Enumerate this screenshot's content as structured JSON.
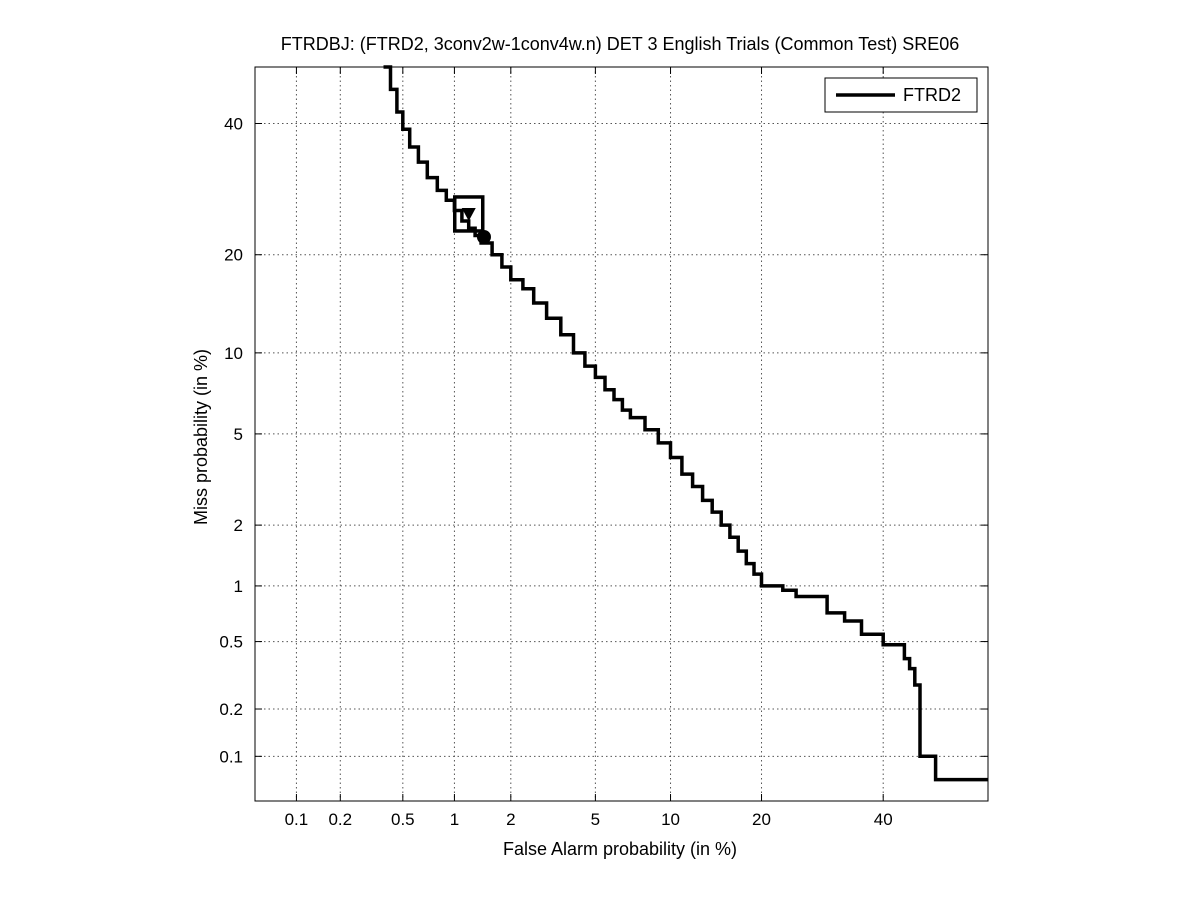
{
  "chart_data": {
    "type": "line",
    "title": "FTRDBJ: (FTRD2, 3conv2w-1conv4w.n) DET 3 English Trials (Common Test) SRE06",
    "xlabel": "False Alarm probability (in %)",
    "ylabel": "Miss probability (in %)",
    "x_scale": "normal-deviate (probit)",
    "y_scale": "normal-deviate (probit)",
    "xlim": [
      0.05,
      60
    ],
    "ylim": [
      0.05,
      50
    ],
    "x_ticks": [
      0.1,
      0.2,
      0.5,
      1,
      2,
      5,
      10,
      20,
      40
    ],
    "x_tick_labels": [
      "0.1",
      "0.2",
      "0.5",
      "1",
      "2",
      "5",
      "10",
      "20",
      "40"
    ],
    "y_ticks": [
      0.1,
      0.2,
      0.5,
      1,
      2,
      5,
      10,
      20,
      40
    ],
    "y_tick_labels": [
      "0.1",
      "0.2",
      "0.5",
      "1",
      "2",
      "5",
      "10",
      "20",
      "40"
    ],
    "grid": true,
    "legend_position": "top-right",
    "series": [
      {
        "name": "FTRD2",
        "color": "#000000",
        "x": [
          0.38,
          0.42,
          0.46,
          0.5,
          0.55,
          0.62,
          0.7,
          0.8,
          0.9,
          1.0,
          1.1,
          1.2,
          1.3,
          1.4,
          1.6,
          1.8,
          2.0,
          2.3,
          2.6,
          3.0,
          3.5,
          4.0,
          4.5,
          5.0,
          5.5,
          6.0,
          6.5,
          7.0,
          8.0,
          9.0,
          10.0,
          11.0,
          12.0,
          13.0,
          14.0,
          15.0,
          16.0,
          17.0,
          18.0,
          19.0,
          20.0,
          21.0,
          23.0,
          25.0,
          30.0,
          33.0,
          36.0,
          40.0,
          44.0,
          45.0,
          46.0,
          47.0,
          50.0,
          60.0
        ],
        "y": [
          50.0,
          46.0,
          42.0,
          39.0,
          36.0,
          33.5,
          31.0,
          29.0,
          27.5,
          26.0,
          24.5,
          23.5,
          22.5,
          21.5,
          20.0,
          18.5,
          17.0,
          16.0,
          14.5,
          13.0,
          11.5,
          10.0,
          9.0,
          8.2,
          7.4,
          6.8,
          6.2,
          5.8,
          5.2,
          4.6,
          4.0,
          3.4,
          3.0,
          2.6,
          2.3,
          2.0,
          1.75,
          1.5,
          1.3,
          1.15,
          1.0,
          1.0,
          0.95,
          0.88,
          0.72,
          0.65,
          0.55,
          0.48,
          0.4,
          0.35,
          0.28,
          0.1,
          0.07,
          0.07
        ]
      }
    ],
    "markers": [
      {
        "shape": "square",
        "x": 1.2,
        "y": 25.5
      },
      {
        "shape": "triangle-down",
        "x": 1.2,
        "y": 25.5
      },
      {
        "shape": "circle",
        "x": 1.45,
        "y": 22.3
      }
    ]
  }
}
